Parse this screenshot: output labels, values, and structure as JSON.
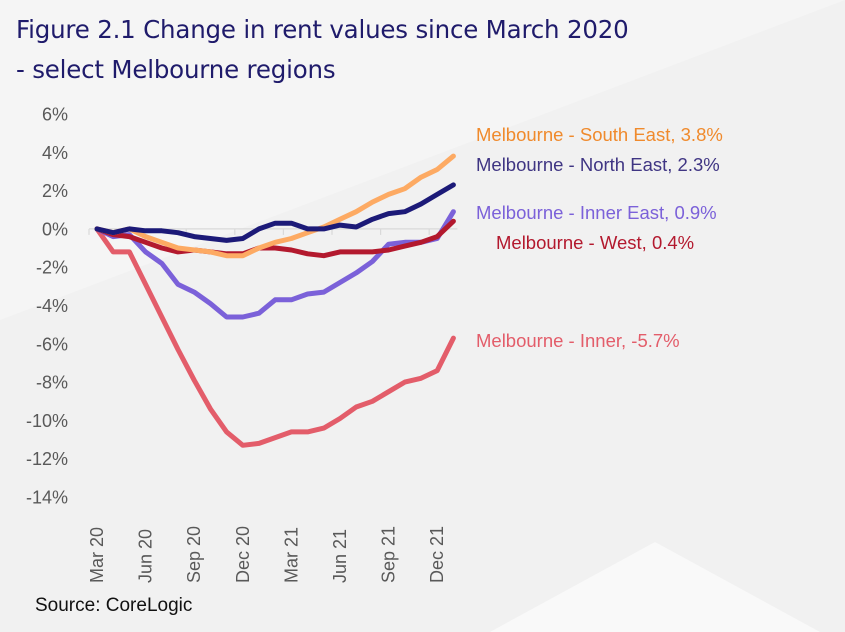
{
  "title": "Figure 2.1 Change in rent values since March 2020 - select Melbourne regions",
  "source": "Source: CoreLogic",
  "chart_data": {
    "type": "line",
    "title": "Figure 2.1 Change in rent values since March 2020 - select Melbourne regions",
    "xlabel": "",
    "ylabel": "",
    "ylim": [
      -14,
      6
    ],
    "yticks": [
      6,
      4,
      2,
      0,
      -2,
      -4,
      -6,
      -8,
      -10,
      -12,
      -14
    ],
    "ytick_labels": [
      "6%",
      "4%",
      "2%",
      "0%",
      "-2%",
      "-4%",
      "-6%",
      "-8%",
      "-10%",
      "-12%",
      "-14%"
    ],
    "x": [
      "Mar 20",
      "Apr 20",
      "May 20",
      "Jun 20",
      "Jul 20",
      "Aug 20",
      "Sep 20",
      "Oct 20",
      "Nov 20",
      "Dec 20",
      "Jan 21",
      "Feb 21",
      "Mar 21",
      "Apr 21",
      "May 21",
      "Jun 21",
      "Jul 21",
      "Aug 21",
      "Sep 21",
      "Oct 21",
      "Nov 21",
      "Dec 21",
      "Jan 22"
    ],
    "xtick_labels": [
      "Mar 20",
      "Jun 20",
      "Sep 20",
      "Dec 20",
      "Mar 21",
      "Jun 21",
      "Sep 21",
      "Dec 21"
    ],
    "grid": false,
    "legend": "direct labels at line ends (right)",
    "series": [
      {
        "name": "Melbourne - Inner",
        "label": "Melbourne - Inner, -5.7%",
        "color": "#e35d6a",
        "values": [
          0,
          -1.2,
          -1.2,
          -2.9,
          -4.6,
          -6.3,
          -7.9,
          -9.4,
          -10.6,
          -11.3,
          -11.2,
          -10.9,
          -10.6,
          -10.6,
          -10.4,
          -9.9,
          -9.3,
          -9.0,
          -8.5,
          -8.0,
          -7.8,
          -7.4,
          -5.7
        ]
      },
      {
        "name": "Melbourne - Inner East",
        "label": "Melbourne - Inner East, 0.9%",
        "color": "#7b61d9",
        "values": [
          0,
          -0.4,
          -0.3,
          -1.2,
          -1.8,
          -2.9,
          -3.3,
          -3.9,
          -4.6,
          -4.6,
          -4.4,
          -3.7,
          -3.7,
          -3.4,
          -3.3,
          -2.8,
          -2.3,
          -1.7,
          -0.8,
          -0.7,
          -0.7,
          -0.5,
          0.9
        ]
      },
      {
        "name": "Melbourne - West",
        "label": "Melbourne - West, 0.4%",
        "color": "#b3192e",
        "values": [
          0,
          -0.3,
          -0.4,
          -0.7,
          -1.0,
          -1.2,
          -1.1,
          -1.2,
          -1.3,
          -1.3,
          -1.0,
          -1.0,
          -1.1,
          -1.3,
          -1.4,
          -1.2,
          -1.2,
          -1.2,
          -1.1,
          -0.9,
          -0.7,
          -0.4,
          0.4
        ]
      },
      {
        "name": "Melbourne - South East",
        "label": "Melbourne - South East, 3.8%",
        "color": "#fdaa63",
        "label_color": "#f08a2c",
        "values": [
          0,
          -0.2,
          0.0,
          -0.4,
          -0.7,
          -1.0,
          -1.1,
          -1.2,
          -1.4,
          -1.4,
          -1.0,
          -0.7,
          -0.5,
          -0.2,
          0.1,
          0.5,
          0.9,
          1.4,
          1.8,
          2.1,
          2.7,
          3.1,
          3.8
        ]
      },
      {
        "name": "Melbourne - North East",
        "label": "Melbourne - North East, 2.3%",
        "color": "#1c1a78",
        "label_color": "#3f3583",
        "values": [
          0,
          -0.2,
          0.0,
          -0.1,
          -0.1,
          -0.2,
          -0.4,
          -0.5,
          -0.6,
          -0.5,
          0.0,
          0.3,
          0.3,
          0.0,
          0.0,
          0.2,
          0.1,
          0.5,
          0.8,
          0.9,
          1.3,
          1.8,
          2.3
        ]
      }
    ]
  }
}
